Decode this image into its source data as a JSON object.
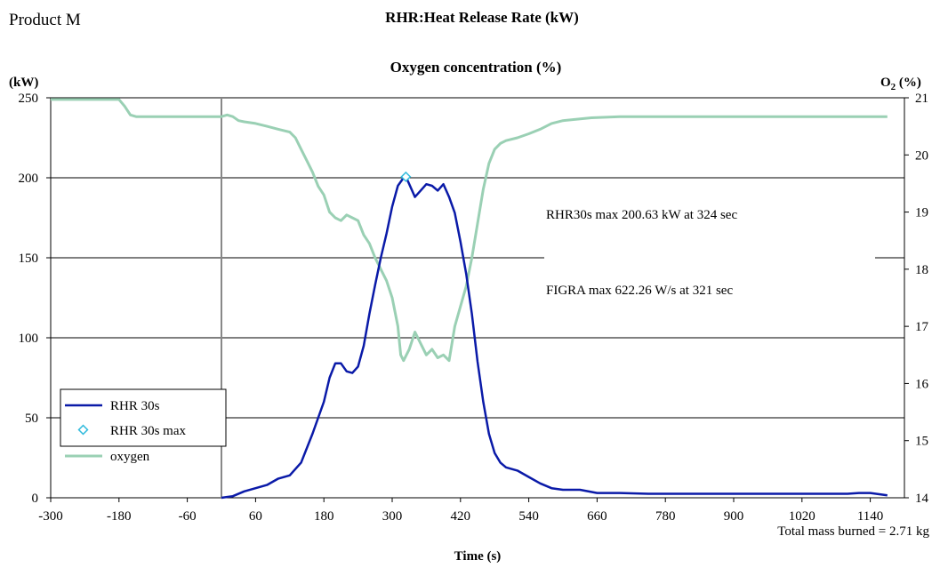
{
  "product_label": "Product M",
  "chart_data": {
    "type": "line",
    "title": "RHR:Heat Release Rate (kW)",
    "subtitle": "Oxygen concentration (%)",
    "xlabel": "Time (s)",
    "ylabel_left": "(kW)",
    "ylabel_right_main": "O",
    "ylabel_right_sub": "2",
    "ylabel_right_suffix": " (%)",
    "xlim": [
      -300,
      1200
    ],
    "ylim_left": [
      0,
      250
    ],
    "ylim_right": [
      14,
      21
    ],
    "x_ticks": [
      -300,
      -180,
      -60,
      60,
      180,
      300,
      420,
      540,
      660,
      780,
      900,
      1020,
      1140
    ],
    "y_left_ticks": [
      0,
      50,
      100,
      150,
      200,
      250
    ],
    "y_right_ticks": [
      14,
      15,
      16,
      17,
      18,
      19,
      20,
      21
    ],
    "gridlines": "horizontal",
    "vertical_marker_x": 0,
    "legend_position": "bottom-left",
    "annotations": [
      "RHR30s max 200.63 kW at 324 sec",
      "FIGRA max 622.26 W/s at 321 sec"
    ],
    "footer_note": "Total mass burned = 2.71 kg",
    "series": [
      {
        "name": "RHR 30s",
        "axis": "left",
        "color": "#0a1aa8",
        "x": [
          0,
          20,
          40,
          60,
          80,
          100,
          120,
          140,
          160,
          180,
          190,
          200,
          210,
          220,
          230,
          240,
          250,
          260,
          270,
          280,
          290,
          300,
          310,
          320,
          324,
          330,
          340,
          350,
          360,
          370,
          380,
          390,
          400,
          410,
          420,
          430,
          440,
          450,
          460,
          470,
          480,
          490,
          500,
          520,
          540,
          560,
          580,
          600,
          630,
          660,
          700,
          750,
          800,
          850,
          900,
          950,
          1000,
          1050,
          1100,
          1120,
          1140,
          1160,
          1170
        ],
        "y": [
          0,
          1,
          4,
          6,
          8,
          12,
          14,
          22,
          40,
          60,
          75,
          84,
          84,
          79,
          78,
          82,
          95,
          115,
          133,
          150,
          165,
          182,
          195,
          200,
          200.63,
          196,
          188,
          192,
          196,
          195,
          192,
          196,
          188,
          178,
          160,
          140,
          115,
          85,
          60,
          40,
          28,
          22,
          19,
          17,
          13,
          9,
          6,
          5,
          5,
          3,
          3,
          2.5,
          2.5,
          2.5,
          2.5,
          2.5,
          2.5,
          2.5,
          2.5,
          3,
          3,
          2,
          1.5
        ]
      },
      {
        "name": "RHR 30s max",
        "axis": "left",
        "color": "#33bbdd",
        "x": [
          324
        ],
        "y": [
          200.63
        ]
      },
      {
        "name": "oxygen",
        "axis": "right",
        "color": "#9ad0b4",
        "x": [
          -300,
          -250,
          -200,
          -180,
          -170,
          -160,
          -150,
          -100,
          -50,
          0,
          10,
          20,
          30,
          40,
          60,
          80,
          100,
          120,
          130,
          140,
          150,
          160,
          170,
          180,
          190,
          200,
          210,
          220,
          230,
          240,
          250,
          260,
          270,
          280,
          290,
          300,
          310,
          315,
          320,
          330,
          340,
          350,
          360,
          370,
          380,
          390,
          400,
          410,
          420,
          430,
          440,
          450,
          460,
          470,
          480,
          490,
          500,
          520,
          540,
          560,
          580,
          600,
          650,
          700,
          800,
          900,
          1000,
          1100,
          1170
        ],
        "y": [
          20.97,
          20.97,
          20.97,
          20.97,
          20.85,
          20.7,
          20.67,
          20.67,
          20.67,
          20.67,
          20.7,
          20.67,
          20.6,
          20.58,
          20.55,
          20.5,
          20.45,
          20.4,
          20.3,
          20.1,
          19.9,
          19.7,
          19.45,
          19.3,
          19.0,
          18.9,
          18.85,
          18.95,
          18.9,
          18.85,
          18.6,
          18.45,
          18.2,
          18.0,
          17.8,
          17.5,
          17.0,
          16.5,
          16.4,
          16.6,
          16.9,
          16.7,
          16.5,
          16.6,
          16.45,
          16.5,
          16.4,
          17.0,
          17.35,
          17.7,
          18.2,
          18.8,
          19.4,
          19.85,
          20.1,
          20.2,
          20.25,
          20.3,
          20.37,
          20.45,
          20.55,
          20.6,
          20.65,
          20.67,
          20.67,
          20.67,
          20.67,
          20.67,
          20.67
        ]
      }
    ]
  }
}
